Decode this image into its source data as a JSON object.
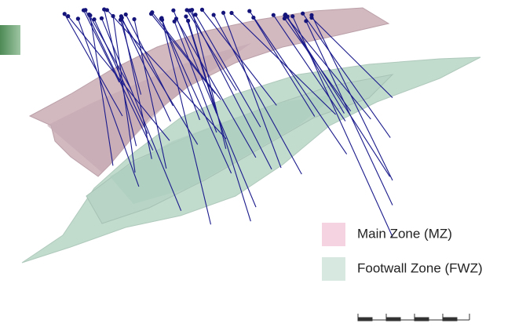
{
  "legend": {
    "items": [
      {
        "label": "Main Zone (MZ)"
      },
      {
        "label": "Footwall Zone (FWZ)"
      }
    ]
  }
}
